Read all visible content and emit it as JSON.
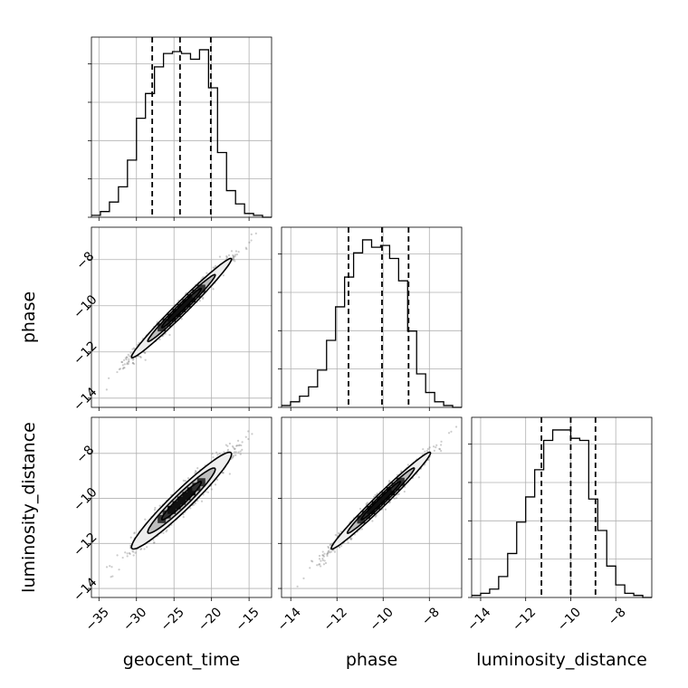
{
  "chart_data": {
    "type": "corner",
    "parameters": [
      "geocent_time",
      "phase",
      "luminosity_distance"
    ],
    "ranges": {
      "geocent_time": [
        -36,
        -12
      ],
      "phase": [
        -14.4,
        -6.6
      ],
      "luminosity_distance": [
        -14.4,
        -6.4
      ]
    },
    "ticks": {
      "geocent_time": [
        {
          "v": -35,
          "label": "−35"
        },
        {
          "v": -30,
          "label": "−30"
        },
        {
          "v": -25,
          "label": "−25"
        },
        {
          "v": -20,
          "label": "−20"
        },
        {
          "v": -15,
          "label": "−15"
        }
      ],
      "phase": [
        {
          "v": -14,
          "label": "−14"
        },
        {
          "v": -12,
          "label": "−12"
        },
        {
          "v": -10,
          "label": "−10"
        },
        {
          "v": -8,
          "label": "−8"
        }
      ],
      "luminosity_distance": [
        {
          "v": -14,
          "label": "−14"
        },
        {
          "v": -12,
          "label": "−12"
        },
        {
          "v": -10,
          "label": "−10"
        },
        {
          "v": -8,
          "label": "−8"
        }
      ]
    },
    "histograms": {
      "geocent_time": {
        "bin_edges": [
          -36,
          -34.8,
          -33.6,
          -32.4,
          -31.2,
          -30,
          -28.8,
          -27.6,
          -26.4,
          -25.2,
          -24,
          -22.8,
          -21.6,
          -20.4,
          -19.2,
          -18,
          -16.8,
          -15.6,
          -14.4,
          -13.2,
          -12
        ],
        "counts": [
          1,
          3,
          8,
          16,
          30,
          52,
          65,
          79,
          86,
          87,
          86,
          83,
          88,
          68,
          34,
          14,
          7,
          2,
          1,
          0
        ],
        "quantiles": [
          -27.9,
          -24.2,
          -20.1
        ]
      },
      "phase": {
        "bin_edges": [
          -14.4,
          -14.01,
          -13.62,
          -13.23,
          -12.84,
          -12.45,
          -12.06,
          -11.67,
          -11.28,
          -10.89,
          -10.5,
          -10.11,
          -9.72,
          -9.33,
          -8.94,
          -8.55,
          -8.16,
          -7.77,
          -7.38,
          -6.99,
          -6.6
        ],
        "counts": [
          1,
          3,
          6,
          11,
          20,
          36,
          54,
          70,
          83,
          90,
          86,
          87,
          80,
          68,
          41,
          18,
          8,
          3,
          1,
          0
        ],
        "quantiles": [
          -11.5,
          -10.05,
          -8.9
        ]
      },
      "luminosity_distance": {
        "bin_edges": [
          -14.4,
          -14,
          -13.6,
          -13.2,
          -12.8,
          -12.4,
          -12,
          -11.6,
          -11.2,
          -10.8,
          -10.4,
          -10,
          -9.6,
          -9.2,
          -8.8,
          -8.4,
          -8,
          -7.6,
          -7.2,
          -6.8,
          -6.4
        ],
        "counts": [
          1,
          2,
          4,
          10,
          21,
          36,
          48,
          61,
          75,
          80,
          80,
          76,
          75,
          47,
          32,
          15,
          6,
          2,
          1,
          0
        ],
        "quantiles": [
          -11.3,
          -10,
          -8.9
        ]
      }
    },
    "pairs": [
      {
        "x": "geocent_time",
        "y": "phase",
        "mean": [
          -24,
          -10.1
        ],
        "sd": [
          3.1,
          1.0
        ],
        "corr": 0.985
      },
      {
        "x": "geocent_time",
        "y": "luminosity_distance",
        "mean": [
          -24,
          -10.1
        ],
        "sd": [
          3.1,
          1.0
        ],
        "corr": 0.96
      },
      {
        "x": "phase",
        "y": "luminosity_distance",
        "mean": [
          -10.1,
          -10.1
        ],
        "sd": [
          1.0,
          1.0
        ],
        "corr": 0.985
      }
    ],
    "grid": true
  }
}
